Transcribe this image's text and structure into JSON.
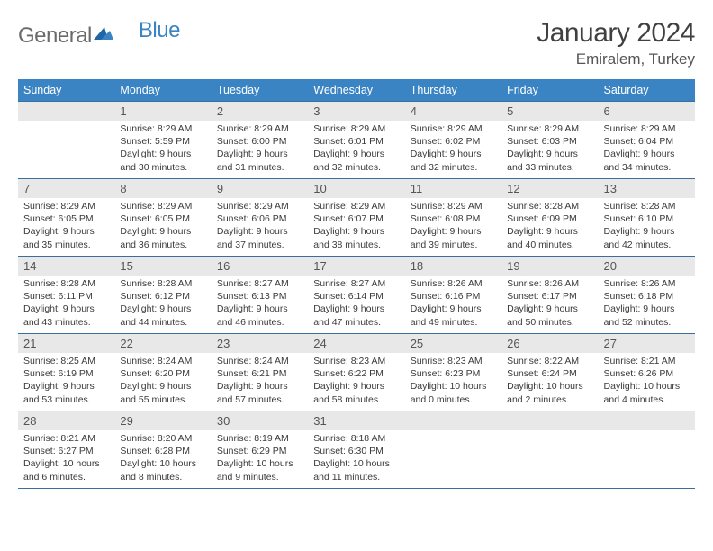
{
  "logo": {
    "general": "General",
    "blue": "Blue"
  },
  "title": "January 2024",
  "location": "Emiralem, Turkey",
  "colors": {
    "header_bg": "#3b84c4",
    "header_text": "#ffffff",
    "daynum_bg": "#e8e8e8",
    "border": "#3b6ea0",
    "body_bg": "#ffffff",
    "text": "#3a3a3a"
  },
  "weekdays": [
    "Sunday",
    "Monday",
    "Tuesday",
    "Wednesday",
    "Thursday",
    "Friday",
    "Saturday"
  ],
  "start_offset": 1,
  "days": [
    {
      "n": 1,
      "sr": "8:29 AM",
      "ss": "5:59 PM",
      "dl": "9 hours and 30 minutes."
    },
    {
      "n": 2,
      "sr": "8:29 AM",
      "ss": "6:00 PM",
      "dl": "9 hours and 31 minutes."
    },
    {
      "n": 3,
      "sr": "8:29 AM",
      "ss": "6:01 PM",
      "dl": "9 hours and 32 minutes."
    },
    {
      "n": 4,
      "sr": "8:29 AM",
      "ss": "6:02 PM",
      "dl": "9 hours and 32 minutes."
    },
    {
      "n": 5,
      "sr": "8:29 AM",
      "ss": "6:03 PM",
      "dl": "9 hours and 33 minutes."
    },
    {
      "n": 6,
      "sr": "8:29 AM",
      "ss": "6:04 PM",
      "dl": "9 hours and 34 minutes."
    },
    {
      "n": 7,
      "sr": "8:29 AM",
      "ss": "6:05 PM",
      "dl": "9 hours and 35 minutes."
    },
    {
      "n": 8,
      "sr": "8:29 AM",
      "ss": "6:05 PM",
      "dl": "9 hours and 36 minutes."
    },
    {
      "n": 9,
      "sr": "8:29 AM",
      "ss": "6:06 PM",
      "dl": "9 hours and 37 minutes."
    },
    {
      "n": 10,
      "sr": "8:29 AM",
      "ss": "6:07 PM",
      "dl": "9 hours and 38 minutes."
    },
    {
      "n": 11,
      "sr": "8:29 AM",
      "ss": "6:08 PM",
      "dl": "9 hours and 39 minutes."
    },
    {
      "n": 12,
      "sr": "8:28 AM",
      "ss": "6:09 PM",
      "dl": "9 hours and 40 minutes."
    },
    {
      "n": 13,
      "sr": "8:28 AM",
      "ss": "6:10 PM",
      "dl": "9 hours and 42 minutes."
    },
    {
      "n": 14,
      "sr": "8:28 AM",
      "ss": "6:11 PM",
      "dl": "9 hours and 43 minutes."
    },
    {
      "n": 15,
      "sr": "8:28 AM",
      "ss": "6:12 PM",
      "dl": "9 hours and 44 minutes."
    },
    {
      "n": 16,
      "sr": "8:27 AM",
      "ss": "6:13 PM",
      "dl": "9 hours and 46 minutes."
    },
    {
      "n": 17,
      "sr": "8:27 AM",
      "ss": "6:14 PM",
      "dl": "9 hours and 47 minutes."
    },
    {
      "n": 18,
      "sr": "8:26 AM",
      "ss": "6:16 PM",
      "dl": "9 hours and 49 minutes."
    },
    {
      "n": 19,
      "sr": "8:26 AM",
      "ss": "6:17 PM",
      "dl": "9 hours and 50 minutes."
    },
    {
      "n": 20,
      "sr": "8:26 AM",
      "ss": "6:18 PM",
      "dl": "9 hours and 52 minutes."
    },
    {
      "n": 21,
      "sr": "8:25 AM",
      "ss": "6:19 PM",
      "dl": "9 hours and 53 minutes."
    },
    {
      "n": 22,
      "sr": "8:24 AM",
      "ss": "6:20 PM",
      "dl": "9 hours and 55 minutes."
    },
    {
      "n": 23,
      "sr": "8:24 AM",
      "ss": "6:21 PM",
      "dl": "9 hours and 57 minutes."
    },
    {
      "n": 24,
      "sr": "8:23 AM",
      "ss": "6:22 PM",
      "dl": "9 hours and 58 minutes."
    },
    {
      "n": 25,
      "sr": "8:23 AM",
      "ss": "6:23 PM",
      "dl": "10 hours and 0 minutes."
    },
    {
      "n": 26,
      "sr": "8:22 AM",
      "ss": "6:24 PM",
      "dl": "10 hours and 2 minutes."
    },
    {
      "n": 27,
      "sr": "8:21 AM",
      "ss": "6:26 PM",
      "dl": "10 hours and 4 minutes."
    },
    {
      "n": 28,
      "sr": "8:21 AM",
      "ss": "6:27 PM",
      "dl": "10 hours and 6 minutes."
    },
    {
      "n": 29,
      "sr": "8:20 AM",
      "ss": "6:28 PM",
      "dl": "10 hours and 8 minutes."
    },
    {
      "n": 30,
      "sr": "8:19 AM",
      "ss": "6:29 PM",
      "dl": "10 hours and 9 minutes."
    },
    {
      "n": 31,
      "sr": "8:18 AM",
      "ss": "6:30 PM",
      "dl": "10 hours and 11 minutes."
    }
  ],
  "labels": {
    "sunrise": "Sunrise:",
    "sunset": "Sunset:",
    "daylight": "Daylight:"
  }
}
